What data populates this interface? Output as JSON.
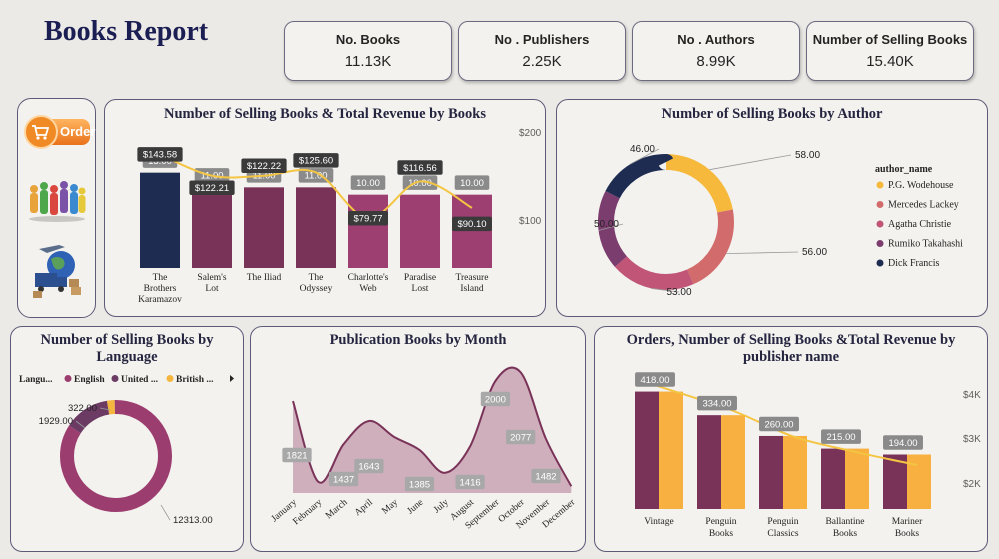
{
  "header": {
    "title": "Books Report"
  },
  "kpis": [
    {
      "label": "No. Books",
      "value": "11.13K"
    },
    {
      "label": "No . Publishers",
      "value": "2.25K"
    },
    {
      "label": "No . Authors",
      "value": "8.99K"
    },
    {
      "label": "Number of Selling Books",
      "value": "15.40K"
    }
  ],
  "nav": {
    "order_label": "Order",
    "icons": [
      "cart-order-icon",
      "people-crowd-icon",
      "logistics-globe-icon"
    ]
  },
  "colors": {
    "navy": "#1f2c52",
    "plum": "#7a3358",
    "berry": "#9e3f72",
    "yellow": "#f4c542",
    "orange": "#f8b040",
    "mauve": "#c9a3b4",
    "label_bg": "#8a8a8a"
  },
  "chart_data": [
    {
      "id": "books",
      "type": "bar",
      "title": "Number of Selling Books & Total Revenue by Books",
      "categories": [
        "The Brothers Karamazov",
        "Salem's Lot",
        "The Iliad",
        "The Odyssey",
        "Charlotte's Web",
        "Paradise Lost",
        "Treasure Island"
      ],
      "series": [
        {
          "values": [
            13,
            11,
            11,
            11,
            10,
            10,
            10
          ]
        },
        {
          "values": [
            143.58,
            122.21,
            122.22,
            125.6,
            79.77,
            116.56,
            90.1
          ]
        }
      ],
      "bar_labels": [
        "13.00",
        "11.00",
        "11.00",
        "11.00",
        "10.00",
        "10.00",
        "10.00"
      ],
      "line_labels": [
        "$143.58",
        "$122.21",
        "$122.22",
        "$125.60",
        "$79.77",
        "$116.56",
        "$90.10"
      ],
      "y2_ticks": [
        "$200",
        "$100"
      ]
    },
    {
      "id": "author",
      "type": "pie",
      "title": "Number of Selling Books by Author",
      "legend_title": "author_name",
      "labels": [
        "P.G. Wodehouse",
        "Mercedes Lackey",
        "Agatha Christie",
        "Rumiko Takahashi",
        "Dick Francis"
      ],
      "values": [
        58,
        56,
        53,
        50,
        46
      ],
      "value_labels": [
        "58.00",
        "56.00",
        "53.00",
        "50.00",
        "46.00"
      ],
      "colors": [
        "#f6b93b",
        "#d26b6b",
        "#c05577",
        "#7b3c6e",
        "#1f2c52"
      ]
    },
    {
      "id": "language",
      "type": "pie",
      "title": "Number of Selling Books by Language",
      "legend_title": "Langu...",
      "labels": [
        "English",
        "United ...",
        "British ..."
      ],
      "values": [
        12313,
        1929,
        322
      ],
      "value_labels": [
        "12313.00",
        "1929.00",
        "322.00"
      ],
      "colors": [
        "#9c3d6f",
        "#6b3b64",
        "#f4b63f"
      ]
    },
    {
      "id": "month",
      "type": "area",
      "title": "Publication Books by Month",
      "categories": [
        "January",
        "February",
        "March",
        "April",
        "May",
        "June",
        "July",
        "August",
        "September",
        "October",
        "November",
        "December"
      ],
      "values": [
        1821,
        1100,
        1437,
        1643,
        1500,
        1385,
        1180,
        1416,
        2000,
        2077,
        1482,
        1060
      ],
      "value_labels": [
        "1821",
        "",
        "1437",
        "1643",
        "",
        "1385",
        "",
        "1416",
        "2000",
        "2077",
        "1482",
        ""
      ]
    },
    {
      "id": "publisher",
      "type": "bar",
      "title": "Orders, Number of Selling Books &Total Revenue by publisher name",
      "categories": [
        "Vintage",
        "Penguin Books",
        "Penguin Classics",
        "Ballantine Books",
        "Mariner Books"
      ],
      "series": [
        {
          "values": [
            418,
            334,
            260,
            215,
            194
          ]
        },
        {
          "values": [
            418,
            334,
            260,
            215,
            194
          ]
        },
        {
          "values": [
            3800,
            3250,
            2650,
            2300,
            2000
          ]
        }
      ],
      "bar_labels": [
        "418.00",
        "334.00",
        "260.00",
        "215.00",
        "194.00"
      ],
      "y2_ticks": [
        "$4K",
        "$3K",
        "$2K"
      ]
    }
  ]
}
